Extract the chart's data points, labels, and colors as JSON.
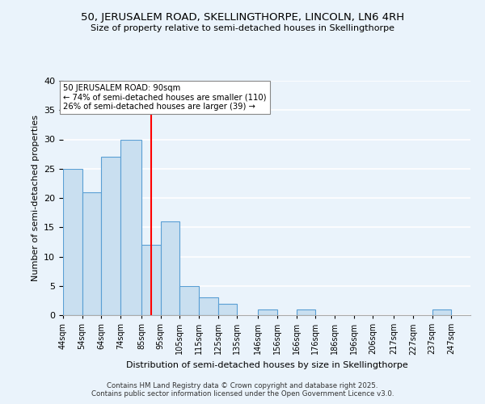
{
  "title1": "50, JERUSALEM ROAD, SKELLINGTHORPE, LINCOLN, LN6 4RH",
  "title2": "Size of property relative to semi-detached houses in Skellingthorpe",
  "xlabel": "Distribution of semi-detached houses by size in Skellingthorpe",
  "ylabel": "Number of semi-detached properties",
  "bin_labels": [
    "44sqm",
    "54sqm",
    "64sqm",
    "74sqm",
    "85sqm",
    "95sqm",
    "105sqm",
    "115sqm",
    "125sqm",
    "135sqm",
    "146sqm",
    "156sqm",
    "166sqm",
    "176sqm",
    "186sqm",
    "196sqm",
    "206sqm",
    "217sqm",
    "227sqm",
    "237sqm",
    "247sqm"
  ],
  "bin_edges": [
    44,
    54,
    64,
    74,
    85,
    95,
    105,
    115,
    125,
    135,
    146,
    156,
    166,
    176,
    186,
    196,
    206,
    217,
    227,
    237,
    247
  ],
  "counts": [
    25,
    21,
    27,
    30,
    12,
    16,
    5,
    3,
    2,
    0,
    1,
    0,
    1,
    0,
    0,
    0,
    0,
    0,
    0,
    1
  ],
  "bar_color": "#c9dff0",
  "bar_edge_color": "#5a9fd4",
  "vline_x": 90,
  "vline_color": "red",
  "annotation_title": "50 JERUSALEM ROAD: 90sqm",
  "annotation_line1": "← 74% of semi-detached houses are smaller (110)",
  "annotation_line2": "26% of semi-detached houses are larger (39) →",
  "annotation_box_color": "white",
  "annotation_box_edge": "#888888",
  "ylim": [
    0,
    40
  ],
  "yticks": [
    0,
    5,
    10,
    15,
    20,
    25,
    30,
    35,
    40
  ],
  "footer1": "Contains HM Land Registry data © Crown copyright and database right 2025.",
  "footer2": "Contains public sector information licensed under the Open Government Licence v3.0.",
  "bg_color": "#eaf3fb",
  "plot_bg_color": "#eaf3fb"
}
